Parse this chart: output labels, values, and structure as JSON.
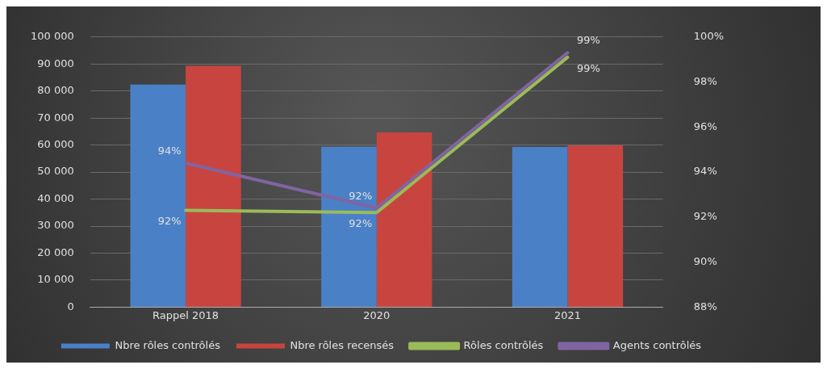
{
  "chart_data": {
    "type": "bar",
    "categories": [
      "Rappel 2018",
      "2020",
      "2021"
    ],
    "series": [
      {
        "name": "Nbre rôles contrôlés",
        "color": "#4a80c6",
        "values": [
          82400,
          59400,
          59300
        ]
      },
      {
        "name": "Nbre rôles recensés",
        "color": "#c8453f",
        "values": [
          89300,
          64700,
          59900
        ]
      },
      {
        "name": "Rôles contrôlés",
        "type": "line",
        "axis": "y2",
        "color": "#9bbb59",
        "values": [
          92.3,
          92.2,
          99.1
        ],
        "value_labels": [
          "92%",
          "92%",
          "99%"
        ]
      },
      {
        "name": "Agents contrôlés",
        "type": "line",
        "axis": "y2",
        "color": "#8064a2",
        "values": [
          94.4,
          92.4,
          99.3
        ],
        "value_labels": [
          "94%",
          "92%",
          "99%"
        ]
      }
    ],
    "ylim": [
      0,
      100000
    ],
    "yticks": [
      {
        "value": 0,
        "label": "0"
      },
      {
        "value": 10000,
        "label": "10 000"
      },
      {
        "value": 20000,
        "label": "20 000"
      },
      {
        "value": 30000,
        "label": "30 000"
      },
      {
        "value": 40000,
        "label": "40 000"
      },
      {
        "value": 50000,
        "label": "50 000"
      },
      {
        "value": 60000,
        "label": "60 000"
      },
      {
        "value": 70000,
        "label": "70 000"
      },
      {
        "value": 80000,
        "label": "80 000"
      },
      {
        "value": 90000,
        "label": "90 000"
      },
      {
        "value": 100000,
        "label": "100 000"
      }
    ],
    "y2lim": [
      88,
      100
    ],
    "y2ticks": [
      {
        "value": 88,
        "label": "88%"
      },
      {
        "value": 90,
        "label": "90%"
      },
      {
        "value": 92,
        "label": "92%"
      },
      {
        "value": 94,
        "label": "94%"
      },
      {
        "value": 96,
        "label": "96%"
      },
      {
        "value": 98,
        "label": "98%"
      },
      {
        "value": 100,
        "label": "100%"
      }
    ],
    "grid": "y",
    "legend": "bottom",
    "marker": "none"
  }
}
